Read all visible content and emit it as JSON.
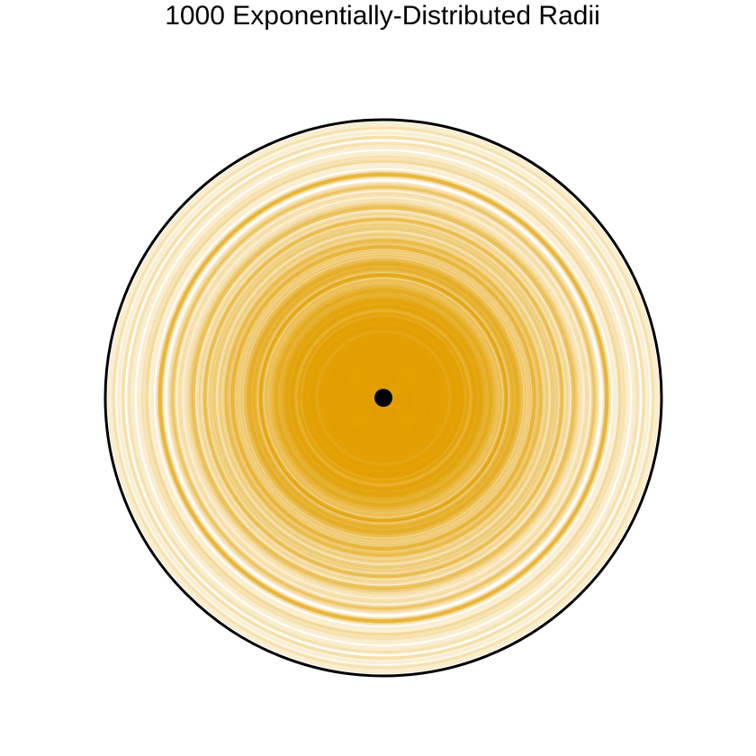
{
  "chart_data": {
    "type": "scatter",
    "title": "1000 Exponentially-Distributed Radii",
    "n": 1000,
    "distribution": "exponential",
    "ring_color": "#E69F00",
    "boundary_color": "#000000",
    "center_color": "#000000",
    "grid": false,
    "axes": false
  }
}
